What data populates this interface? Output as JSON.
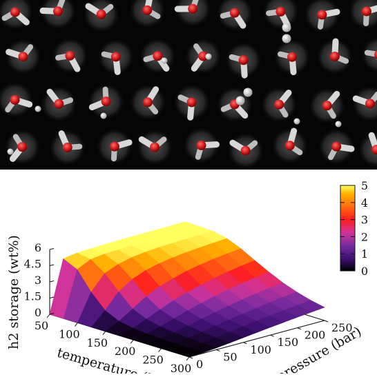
{
  "colors": {
    "background_top": "#050505",
    "oxygen": "#d41e1e",
    "hydrogen": "#d8d8d8",
    "h2_molecule": "#f2f2f2",
    "bond_guest": "#2e8b57",
    "surface_colormap": [
      "#000000",
      "#3b0f70",
      "#7a2ca0",
      "#d0339a",
      "#ff1e1e",
      "#ff6a10",
      "#ffb000",
      "#ffff60"
    ]
  },
  "chart_data": {
    "type": "surface3d",
    "title": "",
    "xlabel": "temperature (K)",
    "ylabel": "pressure (bar)",
    "zlabel": "h2 storage (wt%)",
    "x_ticks": [
      "50",
      "100",
      "150",
      "200",
      "250",
      "300"
    ],
    "y_ticks": [
      "0",
      "50",
      "100",
      "150",
      "200",
      "250"
    ],
    "z_ticks": [
      "0",
      "1.5",
      "3",
      "4.5",
      "6"
    ],
    "x_range": [
      50,
      300
    ],
    "y_range": [
      0,
      250
    ],
    "z_range": [
      0,
      6
    ],
    "colorbar": {
      "ticks": [
        "0",
        "1",
        "2",
        "3",
        "4",
        "5"
      ],
      "range": [
        0,
        5
      ]
    },
    "surface": {
      "temperature": [
        50,
        75,
        100,
        125,
        150,
        175,
        200,
        225,
        250,
        275,
        300
      ],
      "pressure": [
        0,
        25,
        50,
        75,
        100,
        125,
        150,
        175,
        200,
        225,
        250
      ],
      "h2_wt_percent": [
        [
          0.0,
          4.8,
          5.0,
          5.05,
          5.1,
          5.12,
          5.14,
          5.15,
          5.16,
          5.17,
          5.18
        ],
        [
          0.0,
          4.2,
          4.8,
          4.95,
          5.0,
          5.04,
          5.08,
          5.1,
          5.12,
          5.14,
          5.15
        ],
        [
          0.0,
          2.5,
          3.9,
          4.4,
          4.7,
          4.85,
          4.95,
          5.0,
          5.04,
          5.07,
          5.1
        ],
        [
          0.0,
          1.2,
          2.6,
          3.4,
          3.9,
          4.2,
          4.4,
          4.55,
          4.65,
          4.75,
          4.82
        ],
        [
          0.0,
          0.6,
          1.4,
          2.2,
          2.8,
          3.2,
          3.55,
          3.8,
          4.0,
          4.15,
          4.28
        ],
        [
          0.0,
          0.35,
          0.85,
          1.4,
          1.9,
          2.3,
          2.65,
          2.95,
          3.2,
          3.4,
          3.58
        ],
        [
          0.0,
          0.22,
          0.55,
          0.95,
          1.35,
          1.7,
          2.0,
          2.28,
          2.52,
          2.72,
          2.92
        ],
        [
          0.0,
          0.15,
          0.38,
          0.68,
          0.98,
          1.25,
          1.5,
          1.75,
          1.96,
          2.15,
          2.32
        ],
        [
          0.0,
          0.1,
          0.28,
          0.5,
          0.73,
          0.95,
          1.15,
          1.35,
          1.53,
          1.7,
          1.85
        ],
        [
          0.0,
          0.08,
          0.21,
          0.38,
          0.56,
          0.73,
          0.9,
          1.06,
          1.21,
          1.35,
          1.48
        ],
        [
          0.0,
          0.06,
          0.16,
          0.3,
          0.44,
          0.58,
          0.72,
          0.85,
          0.98,
          1.1,
          1.21
        ]
      ]
    }
  }
}
